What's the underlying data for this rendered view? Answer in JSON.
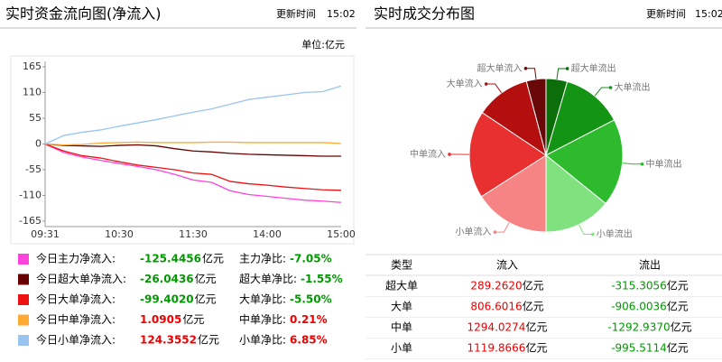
{
  "left_header": {
    "title": "实时资金流向图(净流入)",
    "update_label": "更新时间",
    "update_time": "15:02",
    "unit_label": "单位:亿元"
  },
  "right_header": {
    "title": "实时成交分布图",
    "update_label": "更新时间",
    "update_time": "15:02"
  },
  "chart_data": [
    {
      "type": "line",
      "categories": [
        "09:31",
        null,
        null,
        null,
        "10:30",
        null,
        null,
        null,
        "11:30",
        null,
        null,
        null,
        "14:00",
        null,
        null,
        null,
        "15:00"
      ],
      "series": [
        {
          "name": "今日主力净流入:",
          "color": "#ff44dd",
          "values": [
            0,
            -18,
            -28,
            -35,
            -42,
            -48,
            -55,
            -65,
            -77,
            -82,
            -100,
            -108,
            -112,
            -116,
            -120,
            -122,
            -125
          ]
        },
        {
          "name": "今日超大单净流入:",
          "color": "#660000",
          "values": [
            0,
            -3,
            -4,
            -5,
            -3,
            -2,
            -4,
            -10,
            -15,
            -17,
            -20,
            -22,
            -23,
            -24,
            -25,
            -26,
            -26
          ]
        },
        {
          "name": "今日大单净流入:",
          "color": "#ee1111",
          "values": [
            0,
            -15,
            -25,
            -30,
            -38,
            -45,
            -50,
            -55,
            -62,
            -65,
            -80,
            -85,
            -88,
            -92,
            -95,
            -98,
            -99
          ]
        },
        {
          "name": "今日中单净流入:",
          "color": "#ffaa33",
          "values": [
            0,
            -2,
            -1,
            2,
            3,
            4,
            3,
            3,
            3,
            4,
            4,
            3,
            3,
            3,
            3,
            3,
            1
          ]
        },
        {
          "name": "今日小单净流入:",
          "color": "#99c4ee",
          "values": [
            0,
            18,
            25,
            30,
            38,
            45,
            52,
            60,
            68,
            75,
            85,
            95,
            100,
            105,
            110,
            112,
            124
          ]
        }
      ],
      "ylim": [
        -165,
        165
      ],
      "yticks": [
        165,
        110,
        55,
        0,
        -55,
        -110,
        -165
      ],
      "grid": false
    },
    {
      "type": "pie",
      "categories": [
        "超大单流出",
        "大单流出",
        "中单流出",
        "小单流出",
        "小单流入",
        "中单流入",
        "大单流入",
        "超大单流入"
      ],
      "values": [
        315.3056,
        906.0036,
        1292.937,
        995.5114,
        1119.8666,
        1294.0274,
        806.6016,
        289.262
      ],
      "colors": [
        "#0b6e0b",
        "#149414",
        "#2dbb2d",
        "#7fe27f",
        "#f78484",
        "#e83030",
        "#b40f0f",
        "#6a0808"
      ]
    }
  ],
  "net_summary": [
    {
      "value": "-125.4456",
      "unit": "亿元",
      "color": "#009900",
      "ratio_label": "主力净比:",
      "ratio": "-7.05%",
      "ratio_color": "#009900"
    },
    {
      "value": "-26.0436",
      "unit": "亿元",
      "color": "#009900",
      "ratio_label": "超大单净比:",
      "ratio": "-1.55%",
      "ratio_color": "#009900"
    },
    {
      "value": "-99.4020",
      "unit": "亿元",
      "color": "#009900",
      "ratio_label": "大单净比:",
      "ratio": "-5.50%",
      "ratio_color": "#009900"
    },
    {
      "value": "1.0905",
      "unit": "亿元",
      "color": "#ee0000",
      "ratio_label": "中单净比:",
      "ratio": "0.21%",
      "ratio_color": "#ee0000"
    },
    {
      "value": "124.3552",
      "unit": "亿元",
      "color": "#ee0000",
      "ratio_label": "小单净比:",
      "ratio": "6.85%",
      "ratio_color": "#ee0000"
    }
  ],
  "table": {
    "header": [
      "类型",
      "流入",
      "流出"
    ],
    "unit": "亿元",
    "in_color": "#ee0000",
    "out_color": "#009900",
    "rows": [
      {
        "type": "超大单",
        "in": "289.2620",
        "out": "-315.3056"
      },
      {
        "type": "大单",
        "in": "806.6016",
        "out": "-906.0036"
      },
      {
        "type": "中单",
        "in": "1294.0274",
        "out": "-1292.9370"
      },
      {
        "type": "小单",
        "in": "1119.8666",
        "out": "-995.5114"
      }
    ]
  }
}
